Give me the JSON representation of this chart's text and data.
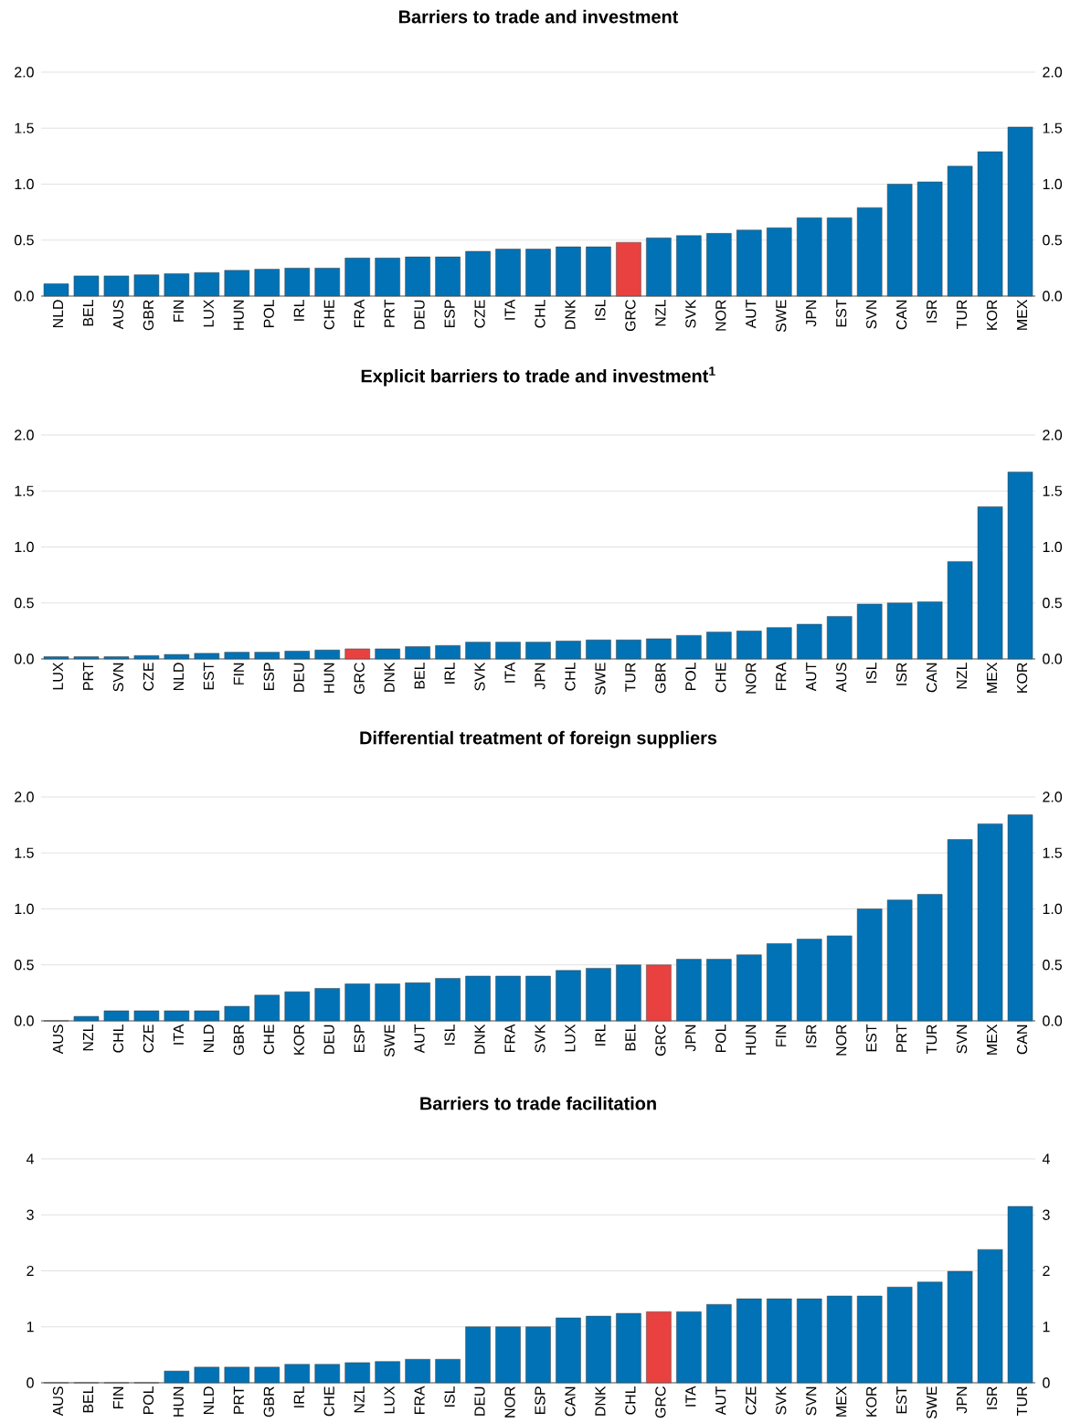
{
  "chart_data": [
    {
      "type": "bar",
      "title": "Barriers to trade and investment",
      "grid": "y",
      "categories": [
        "NLD",
        "BEL",
        "AUS",
        "GBR",
        "FIN",
        "LUX",
        "HUN",
        "POL",
        "IRL",
        "CHE",
        "FRA",
        "PRT",
        "DEU",
        "ESP",
        "CZE",
        "ITA",
        "CHL",
        "DNK",
        "ISL",
        "GRC",
        "NZL",
        "SVK",
        "NOR",
        "AUT",
        "SWE",
        "JPN",
        "EST",
        "SVN",
        "CAN",
        "ISR",
        "TUR",
        "KOR",
        "MEX"
      ],
      "values": [
        0.11,
        0.18,
        0.18,
        0.19,
        0.2,
        0.21,
        0.23,
        0.24,
        0.25,
        0.25,
        0.34,
        0.34,
        0.35,
        0.35,
        0.4,
        0.42,
        0.42,
        0.44,
        0.44,
        0.48,
        0.52,
        0.54,
        0.56,
        0.59,
        0.61,
        0.7,
        0.7,
        0.79,
        1.0,
        1.02,
        1.16,
        1.29,
        1.51
      ],
      "colors": [
        "#0072b5",
        "#0072b5",
        "#0072b5",
        "#0072b5",
        "#0072b5",
        "#0072b5",
        "#0072b5",
        "#0072b5",
        "#0072b5",
        "#0072b5",
        "#0072b5",
        "#0072b5",
        "#0072b5",
        "#0072b5",
        "#0072b5",
        "#0072b5",
        "#0072b5",
        "#0072b5",
        "#0072b5",
        "#e8413f",
        "#0072b5",
        "#0072b5",
        "#0072b5",
        "#0072b5",
        "#0072b5",
        "#0072b5",
        "#0072b5",
        "#0072b5",
        "#0072b5",
        "#0072b5",
        "#0072b5",
        "#0072b5",
        "#0072b5"
      ],
      "ylim": [
        0,
        2
      ],
      "yticks": [
        {
          "value": 0,
          "label": "0.0"
        },
        {
          "value": 0.5,
          "label": "0.5"
        },
        {
          "value": 1,
          "label": "1.0"
        },
        {
          "value": 1.5,
          "label": "1.5"
        },
        {
          "value": 2,
          "label": "2.0"
        }
      ],
      "y2lim": [
        0,
        2
      ],
      "y2ticks": [
        {
          "value": 0,
          "label": "0.0"
        },
        {
          "value": 0.5,
          "label": "0.5"
        },
        {
          "value": 1,
          "label": "1.0"
        },
        {
          "value": 1.5,
          "label": "1.5"
        },
        {
          "value": 2,
          "label": "2.0"
        }
      ]
    },
    {
      "type": "bar",
      "title": "Explicit barriers to trade and investment$^{1}$",
      "grid": "y",
      "categories": [
        "LUX",
        "PRT",
        "SVN",
        "CZE",
        "NLD",
        "EST",
        "FIN",
        "ESP",
        "DEU",
        "HUN",
        "GRC",
        "DNK",
        "BEL",
        "IRL",
        "SVK",
        "ITA",
        "JPN",
        "CHL",
        "SWE",
        "TUR",
        "GBR",
        "POL",
        "CHE",
        "NOR",
        "FRA",
        "AUT",
        "AUS",
        "ISL",
        "ISR",
        "CAN",
        "NZL",
        "MEX",
        "KOR"
      ],
      "values": [
        0.02,
        0.02,
        0.02,
        0.03,
        0.04,
        0.05,
        0.06,
        0.06,
        0.07,
        0.08,
        0.09,
        0.09,
        0.11,
        0.12,
        0.15,
        0.15,
        0.15,
        0.16,
        0.17,
        0.17,
        0.18,
        0.21,
        0.24,
        0.25,
        0.28,
        0.31,
        0.38,
        0.49,
        0.5,
        0.51,
        0.87,
        1.36,
        1.67
      ],
      "colors": [
        "#0072b5",
        "#0072b5",
        "#0072b5",
        "#0072b5",
        "#0072b5",
        "#0072b5",
        "#0072b5",
        "#0072b5",
        "#0072b5",
        "#0072b5",
        "#e8413f",
        "#0072b5",
        "#0072b5",
        "#0072b5",
        "#0072b5",
        "#0072b5",
        "#0072b5",
        "#0072b5",
        "#0072b5",
        "#0072b5",
        "#0072b5",
        "#0072b5",
        "#0072b5",
        "#0072b5",
        "#0072b5",
        "#0072b5",
        "#0072b5",
        "#0072b5",
        "#0072b5",
        "#0072b5",
        "#0072b5",
        "#0072b5",
        "#0072b5"
      ],
      "ylim": [
        0,
        2
      ],
      "yticks": [
        {
          "value": 0,
          "label": "0.0"
        },
        {
          "value": 0.5,
          "label": "0.5"
        },
        {
          "value": 1,
          "label": "1.0"
        },
        {
          "value": 1.5,
          "label": "1.5"
        },
        {
          "value": 2,
          "label": "2.0"
        }
      ],
      "y2lim": [
        0,
        2
      ],
      "y2ticks": [
        {
          "value": 0,
          "label": "0.0"
        },
        {
          "value": 0.5,
          "label": "0.5"
        },
        {
          "value": 1,
          "label": "1.0"
        },
        {
          "value": 1.5,
          "label": "1.5"
        },
        {
          "value": 2,
          "label": "2.0"
        }
      ]
    },
    {
      "type": "bar",
      "title": "Differential treatment of foreign suppliers",
      "grid": "y",
      "categories": [
        "AUS",
        "NZL",
        "CHL",
        "CZE",
        "ITA",
        "NLD",
        "GBR",
        "CHE",
        "KOR",
        "DEU",
        "ESP",
        "SWE",
        "AUT",
        "ISL",
        "DNK",
        "FRA",
        "SVK",
        "LUX",
        "IRL",
        "BEL",
        "GRC",
        "JPN",
        "POL",
        "HUN",
        "FIN",
        "ISR",
        "NOR",
        "EST",
        "PRT",
        "TUR",
        "SVN",
        "MEX",
        "CAN"
      ],
      "values": [
        0,
        0.04,
        0.09,
        0.09,
        0.09,
        0.09,
        0.13,
        0.23,
        0.26,
        0.29,
        0.33,
        0.33,
        0.34,
        0.38,
        0.4,
        0.4,
        0.4,
        0.45,
        0.47,
        0.5,
        0.5,
        0.55,
        0.55,
        0.59,
        0.69,
        0.73,
        0.76,
        1.0,
        1.08,
        1.13,
        1.62,
        1.76,
        1.84
      ],
      "colors": [
        "#0072b5",
        "#0072b5",
        "#0072b5",
        "#0072b5",
        "#0072b5",
        "#0072b5",
        "#0072b5",
        "#0072b5",
        "#0072b5",
        "#0072b5",
        "#0072b5",
        "#0072b5",
        "#0072b5",
        "#0072b5",
        "#0072b5",
        "#0072b5",
        "#0072b5",
        "#0072b5",
        "#0072b5",
        "#0072b5",
        "#e8413f",
        "#0072b5",
        "#0072b5",
        "#0072b5",
        "#0072b5",
        "#0072b5",
        "#0072b5",
        "#0072b5",
        "#0072b5",
        "#0072b5",
        "#0072b5",
        "#0072b5",
        "#0072b5"
      ],
      "ylim": [
        0,
        2
      ],
      "yticks": [
        {
          "value": 0,
          "label": "0.0"
        },
        {
          "value": 0.5,
          "label": "0.5"
        },
        {
          "value": 1,
          "label": "1.0"
        },
        {
          "value": 1.5,
          "label": "1.5"
        },
        {
          "value": 2,
          "label": "2.0"
        }
      ],
      "y2lim": [
        0,
        2
      ],
      "y2ticks": [
        {
          "value": 0,
          "label": "0.0"
        },
        {
          "value": 0.5,
          "label": "0.5"
        },
        {
          "value": 1,
          "label": "1.0"
        },
        {
          "value": 1.5,
          "label": "1.5"
        },
        {
          "value": 2,
          "label": "2.0"
        }
      ]
    },
    {
      "type": "bar",
      "title": "Barriers to trade facilitation",
      "grid": "y",
      "categories": [
        "AUS",
        "BEL",
        "FIN",
        "POL",
        "HUN",
        "NLD",
        "PRT",
        "GBR",
        "IRL",
        "CHE",
        "NZL",
        "LUX",
        "FRA",
        "ISL",
        "DEU",
        "NOR",
        "ESP",
        "CAN",
        "DNK",
        "CHL",
        "GRC",
        "ITA",
        "AUT",
        "CZE",
        "SVK",
        "SVN",
        "MEX",
        "KOR",
        "EST",
        "SWE",
        "JPN",
        "ISR",
        "TUR"
      ],
      "values": [
        0,
        0,
        0,
        0,
        0.21,
        0.28,
        0.28,
        0.28,
        0.33,
        0.33,
        0.36,
        0.38,
        0.42,
        0.42,
        1.0,
        1.0,
        1.0,
        1.16,
        1.19,
        1.24,
        1.27,
        1.27,
        1.4,
        1.5,
        1.5,
        1.5,
        1.55,
        1.55,
        1.71,
        1.8,
        1.99,
        2.38,
        3.15
      ],
      "colors": [
        "#0072b5",
        "#0072b5",
        "#0072b5",
        "#0072b5",
        "#0072b5",
        "#0072b5",
        "#0072b5",
        "#0072b5",
        "#0072b5",
        "#0072b5",
        "#0072b5",
        "#0072b5",
        "#0072b5",
        "#0072b5",
        "#0072b5",
        "#0072b5",
        "#0072b5",
        "#0072b5",
        "#0072b5",
        "#0072b5",
        "#e8413f",
        "#0072b5",
        "#0072b5",
        "#0072b5",
        "#0072b5",
        "#0072b5",
        "#0072b5",
        "#0072b5",
        "#0072b5",
        "#0072b5",
        "#0072b5",
        "#0072b5",
        "#0072b5"
      ],
      "ylim": [
        0,
        4
      ],
      "yticks": [
        0,
        1,
        2,
        3,
        4
      ],
      "y2lim": [
        0,
        4
      ],
      "y2ticks": [
        0,
        1,
        2,
        3,
        4
      ]
    }
  ]
}
